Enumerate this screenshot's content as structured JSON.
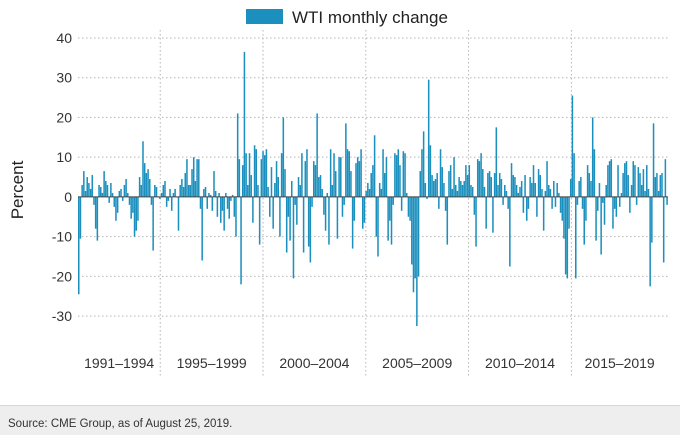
{
  "chart_data": {
    "type": "bar",
    "legend": {
      "label": "WTI monthly change",
      "position": "top-center"
    },
    "ylabel": "Percent",
    "ylim": [
      -35,
      42
    ],
    "yticks": [
      40,
      30,
      20,
      10,
      0,
      -10,
      -20,
      -30
    ],
    "x_start_year": 1991,
    "x_end_year": 2019,
    "period_labels": [
      "1991–1994",
      "1995–1999",
      "2000–2004",
      "2005–2009",
      "2010–2014",
      "2015–2019"
    ],
    "period_boundaries": [
      1991,
      1995,
      2000,
      2005,
      2010,
      2015,
      2019.7
    ],
    "grid": true,
    "colors": {
      "bar": "#1b8fbd",
      "grid": "#b5b5b5",
      "axis": "#888888"
    },
    "values": [
      -24.5,
      -10.5,
      3.0,
      6.5,
      1.5,
      5.0,
      3.5,
      2.0,
      5.5,
      -2.0,
      -8.0,
      -11.0,
      3.0,
      2.5,
      1.0,
      6.5,
      4.0,
      3.0,
      -1.5,
      3.5,
      1.0,
      -2.5,
      -6.0,
      -4.0,
      1.5,
      2.0,
      -1.0,
      3.0,
      4.5,
      1.0,
      -2.0,
      -5.5,
      -4.0,
      -10.0,
      -8.5,
      -6.0,
      5.0,
      3.0,
      14.0,
      8.5,
      6.0,
      7.0,
      4.5,
      -2.0,
      -13.5,
      3.0,
      2.5,
      0.0,
      -0.5,
      1.0,
      3.0,
      4.0,
      -2.5,
      -1.0,
      2.0,
      -3.5,
      1.0,
      2.0,
      0.0,
      -8.5,
      3.0,
      4.5,
      2.5,
      6.0,
      9.5,
      3.0,
      3.0,
      7.0,
      10.0,
      4.0,
      9.5,
      9.5,
      -3.0,
      -16.0,
      2.0,
      2.5,
      -3.0,
      1.0,
      0.5,
      -3.5,
      6.5,
      1.5,
      -5.0,
      1.0,
      -6.5,
      -3.5,
      -8.5,
      1.0,
      -3.0,
      -5.5,
      -1.0,
      0.5,
      -5.0,
      -10.0,
      21.0,
      9.5,
      -22.0,
      8.0,
      36.5,
      11.0,
      3.0,
      11.0,
      5.5,
      -6.5,
      13.0,
      12.0,
      3.0,
      -12.0,
      9.5,
      11.5,
      10.5,
      12.0,
      2.5,
      -5.0,
      7.5,
      -8.0,
      3.5,
      9.0,
      5.0,
      -10.0,
      11.0,
      20.0,
      7.0,
      -14.0,
      -5.0,
      -11.0,
      4.0,
      -20.5,
      -2.0,
      -7.0,
      5.0,
      3.0,
      11.0,
      -14.0,
      9.0,
      12.0,
      -12.5,
      -16.5,
      -2.5,
      9.0,
      8.0,
      21.0,
      5.0,
      5.5,
      2.0,
      -4.5,
      -8.5,
      1.0,
      -12.0,
      12.0,
      3.0,
      11.0,
      6.5,
      -10.5,
      10.0,
      10.0,
      -5.0,
      -2.0,
      18.5,
      12.0,
      11.5,
      6.5,
      -13.0,
      -6.0,
      8.5,
      10.0,
      9.0,
      12.0,
      -8.0,
      -6.5,
      1.5,
      3.5,
      2.0,
      6.0,
      8.0,
      15.5,
      -10.0,
      -15.0,
      3.5,
      2.0,
      12.0,
      6.0,
      10.0,
      -11.0,
      -6.0,
      -12.0,
      -2.0,
      11.0,
      10.5,
      12.0,
      8.0,
      -3.5,
      11.5,
      11.0,
      1.0,
      -5.0,
      -6.0,
      -17.0,
      -24.0,
      -20.5,
      -32.5,
      -20.0,
      6.5,
      12.0,
      16.5,
      3.5,
      -0.5,
      29.5,
      13.0,
      5.5,
      4.0,
      4.5,
      6.0,
      -3.0,
      12.0,
      7.5,
      3.5,
      -3.5,
      -12.0,
      6.5,
      8.0,
      2.0,
      10.0,
      3.0,
      1.5,
      5.0,
      4.0,
      3.0,
      4.0,
      8.0,
      5.5,
      8.0,
      3.0,
      2.5,
      -4.5,
      -12.5,
      9.5,
      9.0,
      11.0,
      7.0,
      2.5,
      -8.0,
      6.0,
      6.5,
      5.0,
      -9.0,
      6.0,
      17.5,
      3.0,
      6.0,
      4.5,
      -2.0,
      3.0,
      1.5,
      -3.0,
      -17.5,
      8.5,
      5.5,
      5.0,
      3.0,
      1.0,
      2.5,
      4.0,
      -4.0,
      5.5,
      -6.0,
      -3.0,
      5.0,
      3.5,
      8.0,
      3.5,
      -5.0,
      7.0,
      5.5,
      2.0,
      -8.5,
      1.5,
      9.0,
      3.0,
      2.0,
      -3.0,
      4.0,
      -2.5,
      3.5,
      1.0,
      -4.0,
      -6.0,
      -10.5,
      -19.5,
      -20.5,
      -8.0,
      4.5,
      25.5,
      11.0,
      -20.5,
      -2.0,
      4.0,
      5.0,
      -3.0,
      -12.0,
      -6.0,
      8.0,
      6.0,
      4.0,
      20.0,
      12.0,
      -11.0,
      -3.5,
      3.5,
      -14.5,
      -1.5,
      -7.0,
      3.0,
      8.0,
      9.0,
      9.5,
      -8.0,
      -3.0,
      -5.0,
      8.0,
      -2.5,
      1.0,
      6.0,
      8.5,
      9.0,
      5.5,
      -4.0,
      3.0,
      9.0,
      8.0,
      -2.0,
      7.5,
      6.0,
      3.0,
      7.0,
      1.5,
      8.0,
      2.0,
      -22.5,
      -11.5,
      18.5,
      5.0,
      6.0,
      1.5,
      5.5,
      6.0,
      -16.5,
      9.5,
      -2.0
    ]
  },
  "source": "Source: CME Group, as of August 25, 2019."
}
